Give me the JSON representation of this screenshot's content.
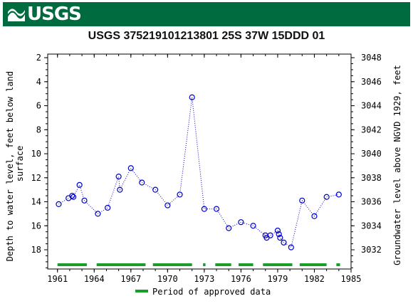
{
  "banner": {
    "logo_text": "USGS",
    "brand_color": "#006b3f"
  },
  "chart_data": {
    "type": "scatter",
    "title": "USGS 375219101213801 25S 37W 15DDD 01",
    "ylabel_left": "Depth to water level, feet below land surface",
    "ylabel_right": "Groundwater level above NGVD 1929, feet",
    "x_ticks": [
      "1961",
      "1964",
      "1967",
      "1970",
      "1973",
      "1976",
      "1979",
      "1982",
      "1985"
    ],
    "y_left_ticks": [
      "2",
      "4",
      "6",
      "8",
      "10",
      "12",
      "14",
      "16",
      "18"
    ],
    "y_right_ticks": [
      "3032",
      "3034",
      "3036",
      "3038",
      "3040",
      "3042",
      "3044",
      "3046",
      "3048"
    ],
    "xlim": [
      1960.2,
      1985
    ],
    "ylim_left": [
      1.7,
      19.6
    ],
    "right_axis_offset": 3050,
    "series": [
      {
        "points": [
          {
            "x": 1961.1,
            "y": 14.2
          },
          {
            "x": 1961.9,
            "y": 13.7
          },
          {
            "x": 1962.2,
            "y": 13.5
          },
          {
            "x": 1962.3,
            "y": 13.6
          },
          {
            "x": 1962.8,
            "y": 12.6
          },
          {
            "x": 1963.2,
            "y": 13.9
          },
          {
            "x": 1964.3,
            "y": 15.0
          },
          {
            "x": 1965.1,
            "y": 14.5
          },
          {
            "x": 1966.0,
            "y": 11.9
          },
          {
            "x": 1966.1,
            "y": 13.0
          },
          {
            "x": 1967.0,
            "y": 11.2
          },
          {
            "x": 1967.9,
            "y": 12.4
          },
          {
            "x": 1969.0,
            "y": 13.0
          },
          {
            "x": 1970.0,
            "y": 14.3
          },
          {
            "x": 1971.0,
            "y": 13.4
          },
          {
            "x": 1972.0,
            "y": 5.3
          },
          {
            "x": 1973.0,
            "y": 14.6
          },
          {
            "x": 1974.0,
            "y": 14.6
          },
          {
            "x": 1975.0,
            "y": 16.2
          },
          {
            "x": 1976.0,
            "y": 15.7
          },
          {
            "x": 1977.0,
            "y": 16.0
          },
          {
            "x": 1978.0,
            "y": 16.8
          },
          {
            "x": 1978.1,
            "y": 17.0
          },
          {
            "x": 1978.4,
            "y": 16.8
          },
          {
            "x": 1979.0,
            "y": 16.4
          },
          {
            "x": 1979.1,
            "y": 16.7
          },
          {
            "x": 1979.2,
            "y": 17.0
          },
          {
            "x": 1979.5,
            "y": 17.4
          },
          {
            "x": 1980.1,
            "y": 17.8
          },
          {
            "x": 1981.0,
            "y": 13.9
          },
          {
            "x": 1982.0,
            "y": 15.2
          },
          {
            "x": 1983.0,
            "y": 13.6
          },
          {
            "x": 1984.0,
            "y": 13.4
          }
        ],
        "color": "#0000cc",
        "line_style": "dotted"
      }
    ],
    "approved_periods": [
      [
        1961.0,
        1963.4
      ],
      [
        1964.2,
        1968.2
      ],
      [
        1968.8,
        1972.0
      ],
      [
        1972.9,
        1973.1
      ],
      [
        1973.9,
        1975.2
      ],
      [
        1975.8,
        1977.0
      ],
      [
        1977.8,
        1980.2
      ],
      [
        1980.8,
        1983.0
      ],
      [
        1983.8,
        1984.1
      ]
    ],
    "approved_color": "#1a9e2a",
    "legend": {
      "label": "Period of approved data",
      "placement": "bottom-center"
    },
    "grid": false
  }
}
